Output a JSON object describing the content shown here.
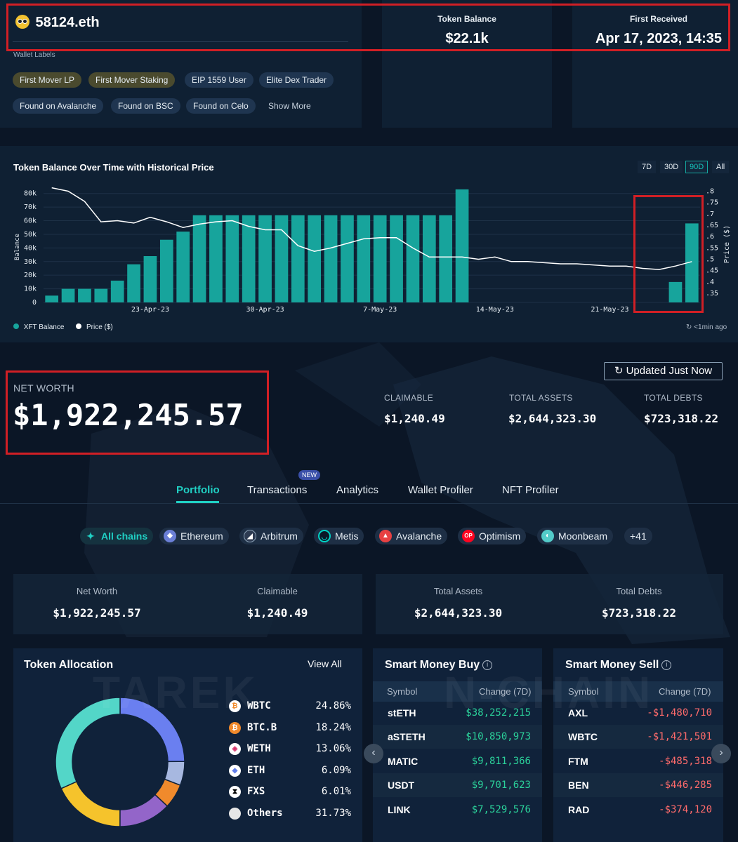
{
  "header": {
    "wallet_name": "58124.eth",
    "token_balance_label": "Token Balance",
    "token_balance_value": "$22.1k",
    "first_received_label": "First Received",
    "first_received_value": "Apr 17, 2023, 14:35",
    "wallet_labels_title": "Wallet Labels",
    "labels": [
      "First Mover LP",
      "First Mover Staking",
      "EIP 1559 User",
      "Elite Dex Trader",
      "Found on Avalanche",
      "Found on BSC",
      "Found on Celo"
    ],
    "show_more": "Show More"
  },
  "chart": {
    "title": "Token Balance Over Time with Historical Price",
    "ranges": [
      "7D",
      "30D",
      "90D",
      "All"
    ],
    "active_range": "90D",
    "legend_balance": "XFT Balance",
    "legend_price": "Price ($)",
    "updated": "<1min ago"
  },
  "chart_data": {
    "type": "bar",
    "title": "Token Balance Over Time with Historical Price",
    "xlabel": "",
    "ylabel": "Balance",
    "y2label": "Price ($)",
    "ylim": [
      0,
      85000
    ],
    "y2lim": [
      0.31,
      0.82
    ],
    "y_ticks": [
      "0",
      "10k",
      "20k",
      "30k",
      "40k",
      "50k",
      "60k",
      "70k",
      "80k"
    ],
    "y2_ticks": [
      ".35",
      ".4",
      ".45",
      ".5",
      ".55",
      ".6",
      ".65",
      ".7",
      ".75",
      ".8"
    ],
    "x_ticks": [
      "23-Apr-23",
      "30-Apr-23",
      "7-May-23",
      "14-May-23",
      "21-May-23"
    ],
    "x_tick_days": [
      6,
      13,
      20,
      27,
      34
    ],
    "day_start_label": "17-Apr-23",
    "bar_color": "#17a49c",
    "line_color": "#ffffff",
    "series": [
      {
        "name": "XFT Balance",
        "days": [
          0,
          1,
          2,
          3,
          4,
          5,
          6,
          7,
          8,
          9,
          10,
          11,
          12,
          13,
          14,
          15,
          16,
          17,
          18,
          19,
          20,
          21,
          22,
          23,
          24,
          25,
          38,
          39
        ],
        "values": [
          5000,
          10000,
          10000,
          10000,
          16000,
          28000,
          34000,
          46000,
          52000,
          64000,
          64000,
          64000,
          64000,
          64000,
          64000,
          64000,
          64000,
          64000,
          64000,
          64000,
          64000,
          64000,
          64000,
          64000,
          64000,
          83000,
          15000,
          58000
        ]
      },
      {
        "name": "Price ($)",
        "days": [
          0,
          1,
          2,
          3,
          4,
          5,
          6,
          7,
          8,
          9,
          10,
          11,
          12,
          13,
          14,
          15,
          16,
          17,
          18,
          19,
          20,
          21,
          22,
          23,
          24,
          25,
          26,
          27,
          28,
          29,
          30,
          31,
          32,
          33,
          34,
          35,
          36,
          37,
          38,
          39
        ],
        "values": [
          0.815,
          0.8,
          0.755,
          0.665,
          0.67,
          0.66,
          0.685,
          0.665,
          0.64,
          0.655,
          0.665,
          0.67,
          0.645,
          0.63,
          0.63,
          0.56,
          0.535,
          0.55,
          0.57,
          0.59,
          0.595,
          0.595,
          0.55,
          0.51,
          0.51,
          0.51,
          0.5,
          0.51,
          0.49,
          0.49,
          0.485,
          0.48,
          0.48,
          0.475,
          0.47,
          0.47,
          0.46,
          0.455,
          0.47,
          0.49
        ]
      }
    ]
  },
  "networth": {
    "label": "NET WORTH",
    "value": "$1,922,245.57",
    "updated_button": "Updated Just Now",
    "claimable_label": "CLAIMABLE",
    "claimable_value": "$1,240.49",
    "assets_label": "TOTAL ASSETS",
    "assets_value": "$2,644,323.30",
    "debts_label": "TOTAL DEBTS",
    "debts_value": "$723,318.22"
  },
  "tabs": [
    "Portfolio",
    "Transactions",
    "Analytics",
    "Wallet Profiler",
    "NFT Profiler"
  ],
  "tab_badge": "NEW",
  "chains": [
    {
      "label": "All chains",
      "icon": "all-chains-icon",
      "color": "#15323f"
    },
    {
      "label": "Ethereum",
      "icon": "ethereum-icon",
      "color": "#6b7fd7"
    },
    {
      "label": "Arbitrum",
      "icon": "arbitrum-icon",
      "color": "#2d3b52"
    },
    {
      "label": "Metis",
      "icon": "metis-icon",
      "color": "#00d2c4"
    },
    {
      "label": "Avalanche",
      "icon": "avalanche-icon",
      "color": "#e84142"
    },
    {
      "label": "Optimism",
      "icon": "optimism-icon",
      "color": "#ff0420"
    },
    {
      "label": "Moonbeam",
      "icon": "moonbeam-icon",
      "color": "#53cbc9"
    }
  ],
  "chains_more": "+41",
  "summary": {
    "net_worth_label": "Net Worth",
    "net_worth_value": "$1,922,245.57",
    "claimable_label": "Claimable",
    "claimable_value": "$1,240.49",
    "assets_label": "Total Assets",
    "assets_value": "$2,644,323.30",
    "debts_label": "Total Debts",
    "debts_value": "$723,318.22"
  },
  "allocation": {
    "title": "Token Allocation",
    "view_all": "View All",
    "items": [
      {
        "symbol": "WBTC",
        "pct": "24.86%",
        "value": 24.86,
        "color": "#6a7ff0",
        "icon": "wbtc-icon"
      },
      {
        "symbol": "BTC.B",
        "pct": "18.24%",
        "value": 18.24,
        "color": "#f5c32c",
        "icon": "btcb-icon"
      },
      {
        "symbol": "WETH",
        "pct": "13.06%",
        "value": 13.06,
        "color": "#9365c9",
        "icon": "weth-icon"
      },
      {
        "symbol": "ETH",
        "pct": "6.09%",
        "value": 6.09,
        "color": "#f08a2c",
        "icon": "eth-icon"
      },
      {
        "symbol": "FXS",
        "pct": "6.01%",
        "value": 6.01,
        "color": "#a7b8e0",
        "icon": "fxs-icon"
      },
      {
        "symbol": "Others",
        "pct": "31.73%",
        "value": 31.73,
        "color": "#53d6c8",
        "icon": "others-icon"
      }
    ]
  },
  "smart_buy": {
    "title": "Smart Money Buy",
    "col_symbol": "Symbol",
    "col_change": "Change (7D)",
    "rows": [
      {
        "symbol": "stETH",
        "change": "$38,252,215"
      },
      {
        "symbol": "aSTETH",
        "change": "$10,850,973"
      },
      {
        "symbol": "MATIC",
        "change": "$9,811,366"
      },
      {
        "symbol": "USDT",
        "change": "$9,701,623"
      },
      {
        "symbol": "LINK",
        "change": "$7,529,576"
      }
    ]
  },
  "smart_sell": {
    "title": "Smart Money Sell",
    "col_symbol": "Symbol",
    "col_change": "Change (7D)",
    "rows": [
      {
        "symbol": "AXL",
        "change": "-$1,480,710"
      },
      {
        "symbol": "WBTC",
        "change": "-$1,421,501"
      },
      {
        "symbol": "FTM",
        "change": "-$485,318"
      },
      {
        "symbol": "BEN",
        "change": "-$446,285"
      },
      {
        "symbol": "RAD",
        "change": "-$374,120"
      }
    ]
  },
  "watermark": {
    "left": "TAREK",
    "right": "N-CHAIN"
  }
}
